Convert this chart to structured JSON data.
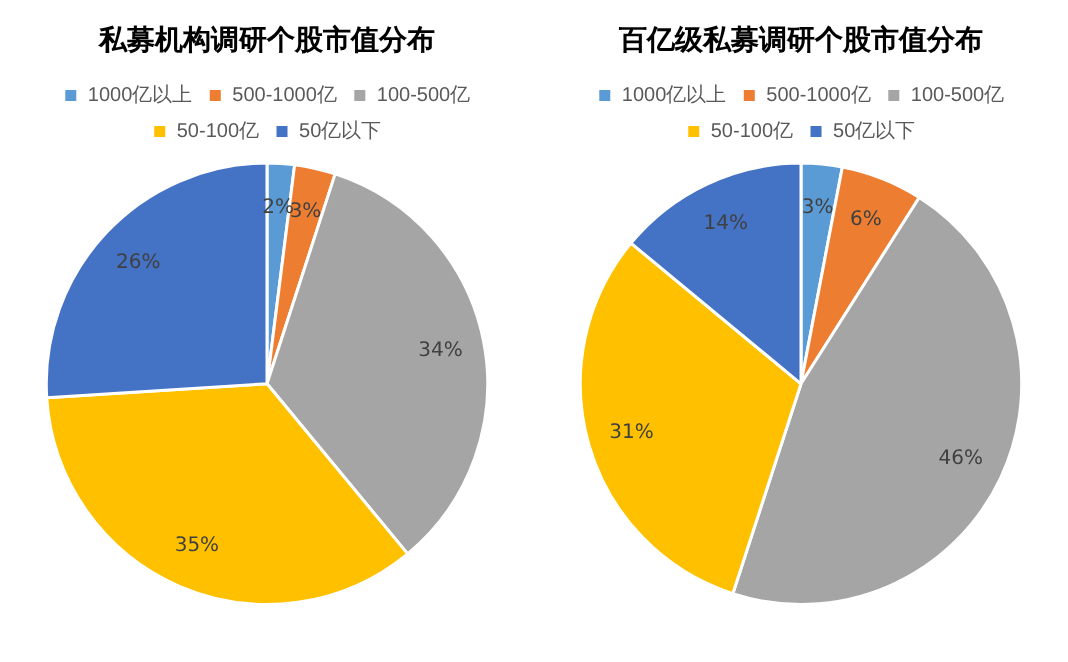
{
  "chart_data": [
    {
      "type": "pie",
      "title": "私募机构调研个股市值分布",
      "categories": [
        "1000亿以上",
        "500-1000亿",
        "100-500亿",
        "50-100亿",
        "50亿以下"
      ],
      "values": [
        2,
        3,
        34,
        35,
        26
      ],
      "value_labels": [
        "2%",
        "3%",
        "34%",
        "35%",
        "26%"
      ],
      "colors": [
        "#5b9bd5",
        "#ed7d31",
        "#a5a5a5",
        "#ffc000",
        "#4472c4"
      ],
      "legend": "top"
    },
    {
      "type": "pie",
      "title": "百亿级私募调研个股市值分布",
      "categories": [
        "1000亿以上",
        "500-1000亿",
        "100-500亿",
        "50-100亿",
        "50亿以下"
      ],
      "values": [
        3,
        6,
        46,
        31,
        14
      ],
      "value_labels": [
        "3%",
        "6%",
        "46%",
        "31%",
        "14%"
      ],
      "colors": [
        "#5b9bd5",
        "#ed7d31",
        "#a5a5a5",
        "#ffc000",
        "#4472c4"
      ],
      "legend": "top"
    }
  ]
}
